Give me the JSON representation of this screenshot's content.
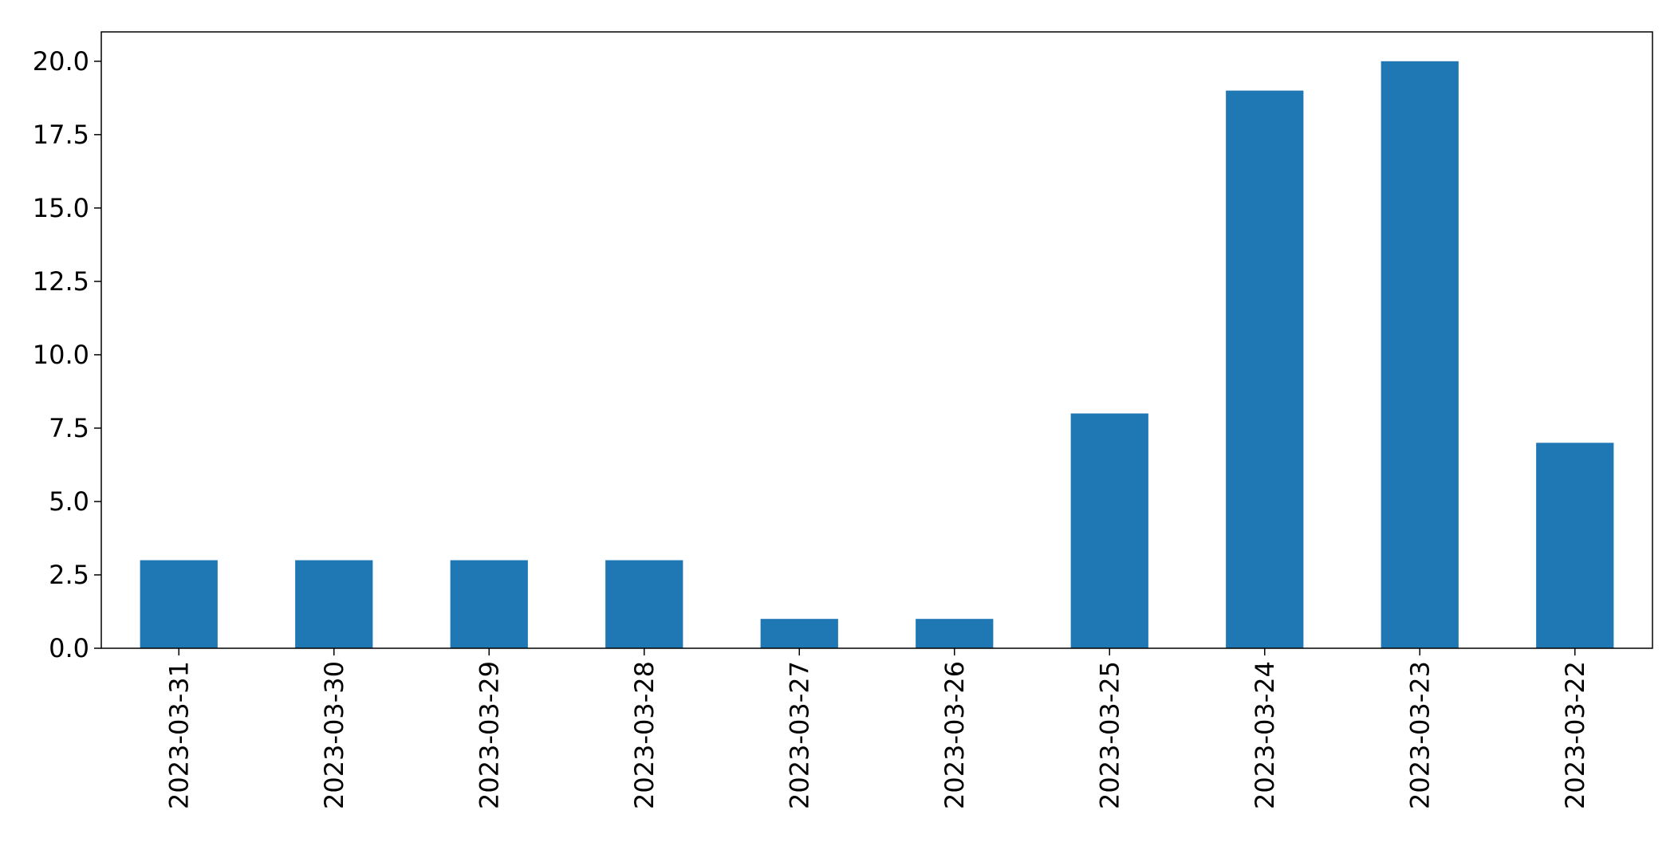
{
  "chart_data": {
    "type": "bar",
    "title": "",
    "xlabel": "",
    "ylabel": "",
    "categories": [
      "2023-03-31",
      "2023-03-30",
      "2023-03-29",
      "2023-03-28",
      "2023-03-27",
      "2023-03-26",
      "2023-03-25",
      "2023-03-24",
      "2023-03-23",
      "2023-03-22"
    ],
    "values": [
      3,
      3,
      3,
      3,
      1,
      1,
      8,
      19,
      20,
      7
    ],
    "ylim": [
      0,
      21
    ],
    "yticks": [
      "0.0",
      "2.5",
      "5.0",
      "7.5",
      "10.0",
      "12.5",
      "15.0",
      "17.5",
      "20.0"
    ],
    "grid": false,
    "bar_color": "#1f77b4",
    "axis_color": "#000000"
  }
}
